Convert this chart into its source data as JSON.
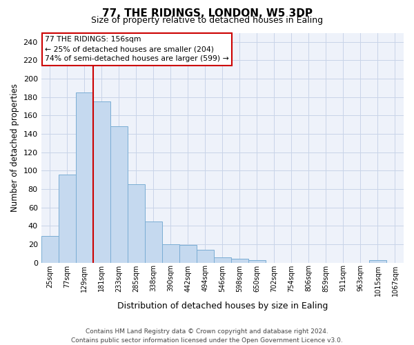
{
  "title": "77, THE RIDINGS, LONDON, W5 3DP",
  "subtitle": "Size of property relative to detached houses in Ealing",
  "xlabel": "Distribution of detached houses by size in Ealing",
  "ylabel": "Number of detached properties",
  "categories": [
    "25sqm",
    "77sqm",
    "129sqm",
    "181sqm",
    "233sqm",
    "285sqm",
    "338sqm",
    "390sqm",
    "442sqm",
    "494sqm",
    "546sqm",
    "598sqm",
    "650sqm",
    "702sqm",
    "754sqm",
    "806sqm",
    "859sqm",
    "911sqm",
    "963sqm",
    "1015sqm",
    "1067sqm"
  ],
  "values": [
    29,
    96,
    185,
    175,
    148,
    85,
    45,
    20,
    19,
    14,
    6,
    4,
    3,
    0,
    0,
    0,
    0,
    0,
    0,
    3,
    0
  ],
  "bar_color": "#c5d9ef",
  "bar_edge_color": "#7aadd4",
  "grid_color": "#c8d4e8",
  "background_color": "#eef2fa",
  "vline_color": "#cc0000",
  "vline_position": 2.5,
  "annotation_text": "77 THE RIDINGS: 156sqm\n← 25% of detached houses are smaller (204)\n74% of semi-detached houses are larger (599) →",
  "ylim": [
    0,
    250
  ],
  "yticks": [
    0,
    20,
    40,
    60,
    80,
    100,
    120,
    140,
    160,
    180,
    200,
    220,
    240
  ],
  "footer_line1": "Contains HM Land Registry data © Crown copyright and database right 2024.",
  "footer_line2": "Contains public sector information licensed under the Open Government Licence v3.0."
}
